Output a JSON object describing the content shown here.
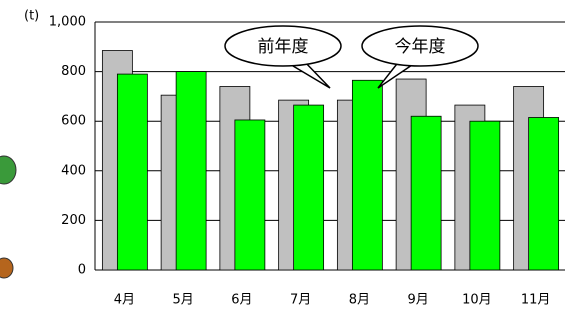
{
  "chart_data": {
    "type": "bar",
    "y_axis_label": "(t)",
    "categories": [
      "4月",
      "5月",
      "6月",
      "7月",
      "8月",
      "9月",
      "10月",
      "11月"
    ],
    "series": [
      {
        "name": "前年度",
        "color": "#c0c0c0",
        "values": [
          885,
          705,
          740,
          685,
          685,
          770,
          665,
          740
        ]
      },
      {
        "name": "今年度",
        "color": "#00ff00",
        "values": [
          790,
          800,
          605,
          665,
          765,
          620,
          600,
          615
        ]
      }
    ],
    "ylim": [
      0,
      1000
    ],
    "yticks": [
      0,
      200,
      400,
      600,
      800,
      {
        "value": 1000,
        "label": "1,000"
      }
    ],
    "grid": true
  }
}
